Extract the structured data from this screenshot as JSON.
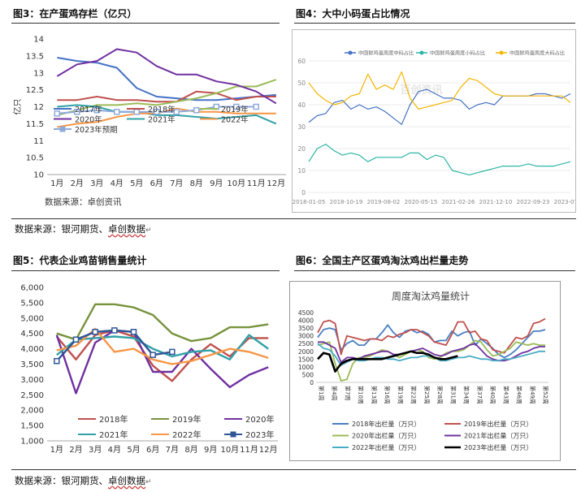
{
  "figures": [
    {
      "title": "图3：在产蛋鸡存栏（亿只）",
      "note": "数据来源：卓创资讯"
    },
    {
      "title": "图4：大中小码蛋占比情况"
    },
    {
      "title": "图5：代表企业鸡苗销售量统计"
    },
    {
      "title": "图6：全国主产区蛋鸡淘汰鸡出栏量走势"
    }
  ],
  "source_lines": [
    {
      "prefix": "数据来源：银河期货、",
      "underlined": "卓创数据"
    },
    {
      "prefix": "数据来源：银河期货、",
      "underlined": "卓创数据"
    }
  ],
  "chart_data": [
    {
      "type": "line",
      "ylabel": "亿只",
      "ylim": [
        10,
        14
      ],
      "yticks": [
        "10",
        "10.5",
        "11",
        "11.5",
        "12",
        "12.5",
        "13",
        "13.5",
        "14"
      ],
      "categories": [
        "1月",
        "2月",
        "3月",
        "4月",
        "5月",
        "6月",
        "7月",
        "8月",
        "9月",
        "10月",
        "11月",
        "12月"
      ],
      "series": [
        {
          "name": "2017年",
          "color": "#4472c4",
          "values": [
            13.45,
            13.35,
            13.3,
            13.15,
            12.55,
            12.3,
            12.25,
            12.2,
            12.2,
            12.25,
            12.3,
            12.35
          ]
        },
        {
          "name": "2018年",
          "color": "#c0504d",
          "values": [
            12.2,
            12.2,
            12.3,
            12.2,
            12.2,
            12.15,
            12.15,
            12.45,
            12.4,
            12.2,
            12.3,
            12.3
          ]
        },
        {
          "name": "2019年",
          "color": "#9bbb59",
          "values": [
            11.75,
            11.9,
            12.05,
            12.05,
            12.1,
            12.05,
            12.15,
            12.25,
            12.4,
            12.6,
            12.6,
            12.8
          ]
        },
        {
          "name": "2020年",
          "color": "#7030a0",
          "values": [
            12.9,
            13.25,
            13.35,
            13.7,
            13.6,
            13.2,
            12.95,
            12.95,
            12.75,
            12.65,
            12.45,
            12.1
          ]
        },
        {
          "name": "2021年",
          "color": "#31a1a8",
          "values": [
            12.0,
            12.05,
            12.0,
            11.85,
            11.85,
            11.75,
            11.75,
            11.7,
            11.65,
            11.7,
            11.75,
            11.5
          ]
        },
        {
          "name": "2022年",
          "color": "#f79646",
          "values": [
            11.4,
            11.5,
            11.55,
            11.7,
            11.8,
            11.8,
            11.95,
            11.85,
            11.85,
            11.8,
            11.8,
            11.8
          ]
        },
        {
          "name": "2023年预期",
          "color": "#8eaadb",
          "marker": "square",
          "values": [
            11.8,
            11.85,
            11.9,
            11.85,
            11.85,
            11.85,
            11.85,
            11.9,
            12.0,
            12.0,
            12.0,
            null
          ]
        }
      ]
    },
    {
      "type": "line",
      "ylim": [
        0,
        60
      ],
      "yticks": [
        "0",
        "10",
        "20",
        "30",
        "40",
        "50",
        "60"
      ],
      "xticks": [
        "2018-01-05",
        "2018-10-19",
        "2019-08-02",
        "2020-05-15",
        "2021-02-26",
        "2021-12-10",
        "2022-09-23",
        "2023-07-07"
      ],
      "watermark": "百创资讯",
      "series": [
        {
          "name": "中国鲜鸡蛋周度中码占比",
          "color": "#4472c4",
          "values": [
            32,
            35,
            36,
            41,
            42,
            38,
            40,
            38,
            39,
            37,
            34,
            31,
            40,
            46,
            47,
            45,
            43,
            43,
            42,
            38,
            40,
            41,
            40,
            44,
            44,
            44,
            44,
            45,
            45,
            44,
            43,
            45
          ]
        },
        {
          "name": "中国鲜鸡蛋周度小码占比",
          "color": "#2bb6a6",
          "values": [
            14,
            20,
            22,
            19,
            17,
            18,
            17,
            14,
            16,
            16,
            16,
            16,
            18,
            18,
            15,
            17,
            16,
            10,
            9,
            8,
            9,
            10,
            11,
            12,
            12,
            12,
            13,
            12,
            12,
            12,
            13,
            14
          ]
        },
        {
          "name": "中国鲜鸡蛋周度大码占比",
          "color": "#f4b400",
          "values": [
            50,
            45,
            42,
            40,
            41,
            44,
            45,
            54,
            47,
            49,
            47,
            55,
            43,
            38,
            39,
            40,
            41,
            42,
            48,
            52,
            51,
            48,
            45,
            44,
            44,
            44,
            44,
            44,
            44,
            44,
            44,
            41
          ]
        }
      ]
    },
    {
      "type": "line",
      "ylim": [
        1000,
        6000
      ],
      "yticks": [
        "1,000",
        "1,500",
        "2,000",
        "2,500",
        "3,000",
        "3,500",
        "4,000",
        "4,500",
        "5,000",
        "5,500",
        "6,000"
      ],
      "categories": [
        "1月",
        "2月",
        "3月",
        "4月",
        "5月",
        "6月",
        "7月",
        "8月",
        "9月",
        "10月",
        "11月",
        "12月"
      ],
      "series": [
        {
          "name": "2018年",
          "color": "#c0504d",
          "values": [
            4400,
            3650,
            4450,
            4600,
            4400,
            3450,
            2950,
            3650,
            4150,
            3750,
            4350,
            4350
          ]
        },
        {
          "name": "2019年",
          "color": "#77933c",
          "values": [
            4500,
            4300,
            5450,
            5450,
            5350,
            5100,
            4500,
            4250,
            4350,
            4700,
            4700,
            4800
          ]
        },
        {
          "name": "2020年",
          "color": "#7030a0",
          "values": [
            4450,
            2550,
            4200,
            4600,
            4550,
            3250,
            3250,
            4000,
            3350,
            2750,
            3150,
            3400
          ]
        },
        {
          "name": "2021年",
          "color": "#31a1a8",
          "values": [
            3800,
            4300,
            4350,
            4400,
            4350,
            4000,
            3750,
            3900,
            3950,
            3650,
            4450,
            4000
          ]
        },
        {
          "name": "2022年",
          "color": "#f79646",
          "values": [
            3950,
            4100,
            4650,
            3900,
            4000,
            3650,
            3500,
            3600,
            3800,
            4000,
            3900,
            3700
          ]
        },
        {
          "name": "2023年",
          "color": "#2f5597",
          "marker": "square",
          "values": [
            3600,
            4300,
            4550,
            4600,
            4550,
            3800,
            3900,
            null,
            null,
            null,
            null,
            null
          ]
        }
      ]
    },
    {
      "type": "line",
      "title": "周度淘汰鸡量统计",
      "ylim": [
        0,
        4500
      ],
      "yticks": [
        "0",
        "500",
        "1000",
        "1500",
        "2000",
        "2500",
        "3000",
        "3500",
        "4000",
        "4500"
      ],
      "xticks": [
        "第1周",
        "第4周",
        "第7周",
        "第10周",
        "第13周",
        "第16周",
        "第19周",
        "第22周",
        "第25周",
        "第28周",
        "第31周",
        "第34周",
        "第37周",
        "第40周",
        "第43周",
        "第46周",
        "第49周",
        "第52周"
      ],
      "series": [
        {
          "name": "2018年出栏量（万只）",
          "color": "#4a7fc1",
          "values": [
            2900,
            3400,
            3500,
            3400,
            2100,
            2500,
            2700,
            2400,
            2400,
            2800,
            2800,
            3200,
            3700,
            3200,
            2900,
            3300,
            3400,
            3200,
            3300,
            3100,
            2600,
            2700,
            2700,
            3300,
            3000,
            3200,
            3300,
            2400,
            2800,
            2500,
            2200,
            1800,
            1600,
            1800,
            2100,
            2500,
            2900,
            3300,
            3300,
            3400
          ]
        },
        {
          "name": "2019年出栏量（万只）",
          "color": "#c0504d",
          "values": [
            3200,
            3900,
            4000,
            3800,
            1800,
            3000,
            2900,
            2800,
            2700,
            2800,
            2800,
            2700,
            3000,
            2900,
            3100,
            3200,
            3400,
            3400,
            3200,
            3000,
            2600,
            2500,
            2400,
            3100,
            3900,
            3900,
            3200,
            3300,
            2800,
            2700,
            2100,
            2000,
            1900,
            2400,
            2900,
            2800,
            3000,
            3800,
            3900,
            4100
          ]
        },
        {
          "name": "2020年出栏量（万只）",
          "color": "#9bbb59",
          "values": [
            2400,
            2500,
            2600,
            1200,
            100,
            200,
            1200,
            1600,
            1600,
            1700,
            1900,
            2100,
            2000,
            1800,
            1600,
            1800,
            2000,
            2100,
            2000,
            1600,
            1500,
            1600,
            1900,
            2000,
            2000,
            2100,
            2400,
            2700,
            2600,
            2100,
            1700,
            1800,
            2000,
            2200,
            2600,
            2500,
            2400,
            2500,
            2400,
            2400
          ]
        },
        {
          "name": "2021年出栏量（万只）",
          "color": "#7030a0",
          "values": [
            2600,
            2600,
            2400,
            2200,
            1300,
            1600,
            1600,
            1500,
            1700,
            1800,
            1900,
            2000,
            2000,
            1800,
            1800,
            1900,
            2000,
            2100,
            2200,
            2000,
            1800,
            1700,
            1800,
            2000,
            2100,
            2200,
            2400,
            2500,
            2100,
            1700,
            1500,
            1400,
            1400,
            1500,
            1700,
            1900,
            2000,
            2200,
            2300,
            2300
          ]
        },
        {
          "name": "2022年出栏量（万只）",
          "color": "#4bacc6",
          "values": [
            2500,
            2200,
            2100,
            1700,
            1100,
            1300,
            1500,
            1400,
            1400,
            1500,
            1600,
            1600,
            1500,
            1500,
            1400,
            1500,
            1600,
            1600,
            1700,
            1700,
            1600,
            1400,
            1400,
            1500,
            1600,
            1600,
            1700,
            1600,
            1500,
            1500,
            1400,
            1400,
            1500,
            1500,
            1600,
            1700,
            1800,
            1900,
            2000,
            2000
          ]
        },
        {
          "name": "2023年出栏量（万只）",
          "color": "#000000",
          "bold": true,
          "values": [
            1500,
            1900,
            1800,
            700,
            1200,
            1400,
            1500,
            1500,
            1500,
            1500,
            1500,
            1500,
            1600,
            1700,
            1800,
            1900,
            2000,
            1900,
            1900,
            1800,
            1600,
            1500,
            1500,
            1600,
            1700,
            null,
            null,
            null,
            null,
            null,
            null,
            null,
            null,
            null,
            null,
            null,
            null,
            null,
            null,
            null
          ]
        }
      ]
    }
  ]
}
